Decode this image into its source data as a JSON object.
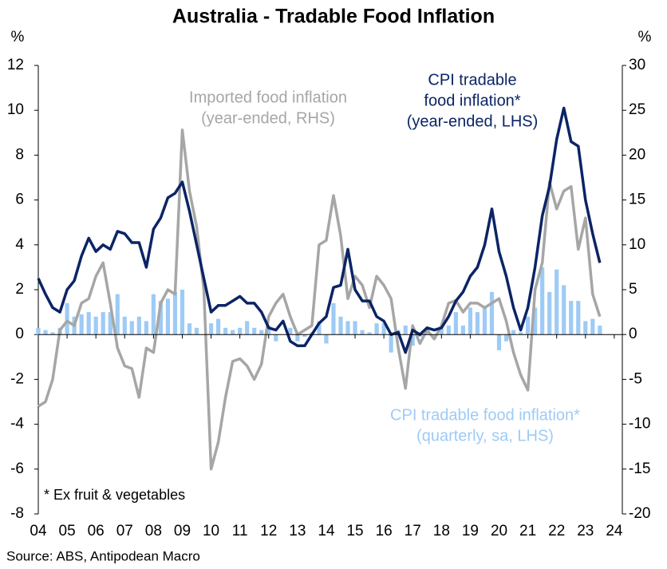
{
  "chart_data": {
    "type": "combo",
    "title": "Australia - Tradable Food Inflation",
    "y_unit": "%",
    "y2_unit": "%",
    "footnote": "* Ex fruit & vegetables",
    "source": "Source: ABS, Antipodean Macro",
    "x": [
      2004,
      2004.25,
      2004.5,
      2004.75,
      2005,
      2005.25,
      2005.5,
      2005.75,
      2006,
      2006.25,
      2006.5,
      2006.75,
      2007,
      2007.25,
      2007.5,
      2007.75,
      2008,
      2008.25,
      2008.5,
      2008.75,
      2009,
      2009.25,
      2009.5,
      2009.75,
      2010,
      2010.25,
      2010.5,
      2010.75,
      2011,
      2011.25,
      2011.5,
      2011.75,
      2012,
      2012.25,
      2012.5,
      2012.75,
      2013,
      2013.25,
      2013.5,
      2013.75,
      2014,
      2014.25,
      2014.5,
      2014.75,
      2015,
      2015.25,
      2015.5,
      2015.75,
      2016,
      2016.25,
      2016.5,
      2016.75,
      2017,
      2017.25,
      2017.5,
      2017.75,
      2018,
      2018.25,
      2018.5,
      2018.75,
      2019,
      2019.25,
      2019.5,
      2019.75,
      2020,
      2020.25,
      2020.5,
      2020.75,
      2021,
      2021.25,
      2021.5,
      2021.75,
      2022,
      2022.25,
      2022.5,
      2022.75,
      2023,
      2023.25,
      2023.5
    ],
    "xlim": [
      2004,
      2024.28
    ],
    "xticks": [
      {
        "value": 2004,
        "label": "04"
      },
      {
        "value": 2005,
        "label": "05"
      },
      {
        "value": 2006,
        "label": "06"
      },
      {
        "value": 2007,
        "label": "07"
      },
      {
        "value": 2008,
        "label": "08"
      },
      {
        "value": 2009,
        "label": "09"
      },
      {
        "value": 2010,
        "label": "10"
      },
      {
        "value": 2011,
        "label": "11"
      },
      {
        "value": 2012,
        "label": "12"
      },
      {
        "value": 2013,
        "label": "13"
      },
      {
        "value": 2014,
        "label": "14"
      },
      {
        "value": 2015,
        "label": "15"
      },
      {
        "value": 2016,
        "label": "16"
      },
      {
        "value": 2017,
        "label": "17"
      },
      {
        "value": 2018,
        "label": "18"
      },
      {
        "value": 2019,
        "label": "19"
      },
      {
        "value": 2020,
        "label": "20"
      },
      {
        "value": 2021,
        "label": "21"
      },
      {
        "value": 2022,
        "label": "22"
      },
      {
        "value": 2023,
        "label": "23"
      },
      {
        "value": 2024,
        "label": "24"
      }
    ],
    "ylim": [
      -8,
      12
    ],
    "yticks": [
      -8,
      -6,
      -4,
      -2,
      0,
      2,
      4,
      6,
      8,
      10,
      12
    ],
    "y2lim": [
      -20,
      30
    ],
    "y2ticks": [
      -20,
      -15,
      -10,
      -5,
      0,
      5,
      10,
      15,
      20,
      25,
      30
    ],
    "series": [
      {
        "type": "bar",
        "color": "#9ecbf5",
        "label": [
          "CPI tradable food inflation*",
          "(quarterly, sa, LHS)"
        ],
        "values": [
          0.3,
          0.2,
          0.1,
          0.3,
          1.4,
          0.8,
          0.9,
          1.0,
          0.8,
          1.0,
          1.0,
          1.8,
          0.8,
          0.6,
          0.8,
          0.6,
          1.8,
          1.5,
          1.6,
          1.9,
          2.0,
          0.5,
          0.3,
          0.0,
          0.5,
          0.7,
          0.3,
          0.2,
          0.3,
          0.6,
          0.3,
          0.2,
          0.4,
          -0.3,
          0.0,
          0.3,
          -0.3,
          -0.1,
          0.1,
          0.6,
          -0.4,
          1.4,
          0.8,
          0.6,
          0.6,
          0.2,
          0.1,
          0.5,
          0.5,
          -0.8,
          0.2,
          0.4,
          -0.5,
          -0.1,
          0.3,
          -0.2,
          0.3,
          0.4,
          1.0,
          0.4,
          1.2,
          1.0,
          1.2,
          1.9,
          -0.7,
          -0.3,
          0.2,
          0.1,
          0.8,
          1.2,
          3.0,
          1.9,
          2.9,
          2.2,
          1.5,
          1.5,
          0.6,
          0.7,
          0.4
        ]
      },
      {
        "type": "line",
        "axis": "y2",
        "color": "#a6a6a6",
        "label": [
          "Imported food inflation",
          "(year-ended, RHS)"
        ],
        "values": [
          -8.0,
          -7.5,
          -5,
          0.5,
          1.5,
          1.0,
          3.5,
          4.0,
          6.5,
          8.0,
          3.5,
          -1.5,
          -3.5,
          -3.8,
          -7.0,
          -1.5,
          -2.0,
          3.5,
          5.0,
          4.5,
          22.8,
          16,
          12,
          5,
          -15,
          -12,
          -7,
          -3,
          -2.7,
          -3.5,
          -5,
          -3.3,
          2,
          3.5,
          4.5,
          2,
          0,
          0.5,
          1.0,
          10,
          10.5,
          15.5,
          11,
          4,
          6.5,
          5.5,
          3,
          6.5,
          5.5,
          4.0,
          -1.5,
          -6,
          1,
          -1,
          0.5,
          -0.5,
          1.0,
          3.5,
          3.8,
          2.5,
          3.5,
          3.5,
          3.0,
          3.5,
          4.0,
          1.5,
          -2,
          -4.5,
          -6.2,
          5,
          8,
          17,
          14,
          16,
          16.5,
          9.5,
          13,
          4.5,
          2
        ]
      },
      {
        "type": "line",
        "color": "#0b2466",
        "label": [
          "CPI tradable",
          "food inflation*",
          "(year-ended, LHS)"
        ],
        "values": [
          2.5,
          1.8,
          1.2,
          1.0,
          2.0,
          2.4,
          3.5,
          4.3,
          3.7,
          4.0,
          3.8,
          4.6,
          4.5,
          4.1,
          4.1,
          3.0,
          4.7,
          5.2,
          6.1,
          6.3,
          6.8,
          5.5,
          4.0,
          2.5,
          1.0,
          1.3,
          1.3,
          1.5,
          1.7,
          1.4,
          1.4,
          1.0,
          0.3,
          0.2,
          0.6,
          -0.3,
          -0.5,
          -0.5,
          0.0,
          0.5,
          0.8,
          2.1,
          2.2,
          3.8,
          2.0,
          1.5,
          1.5,
          0.8,
          0.6,
          0.0,
          0.1,
          -0.8,
          0.2,
          0.0,
          0.3,
          0.2,
          0.3,
          0.8,
          1.5,
          1.9,
          2.6,
          3.0,
          4.0,
          5.6,
          3.7,
          2.6,
          1.2,
          0.2,
          1.2,
          3.0,
          5.3,
          6.6,
          8.7,
          10.1,
          8.6,
          8.4,
          6.0,
          4.5,
          3.2
        ]
      }
    ]
  }
}
